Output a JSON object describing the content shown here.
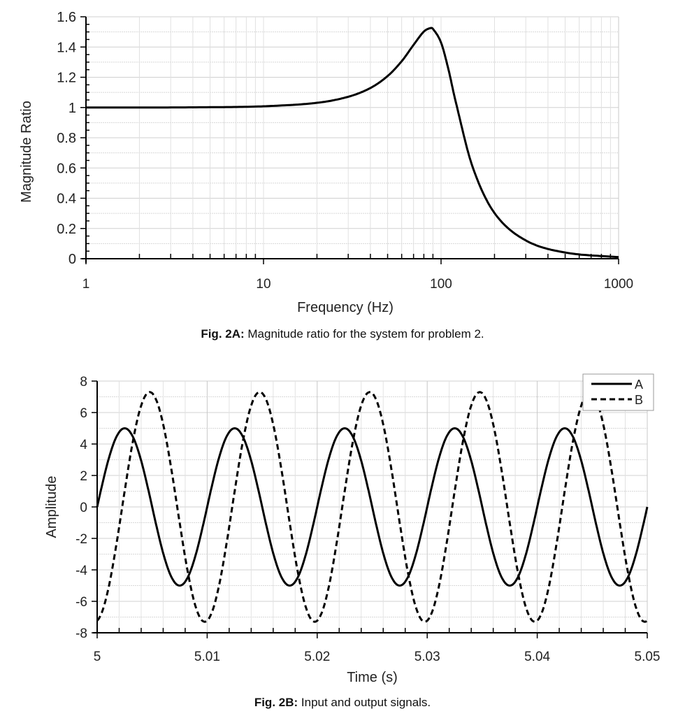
{
  "chart_data": [
    {
      "type": "line",
      "ylabel": "Magnitude Ratio",
      "xlabel": "Frequency (Hz)",
      "x_scale": "log",
      "xlim": [
        1,
        1000
      ],
      "ylim": [
        0,
        1.6
      ],
      "x_ticks": [
        "1",
        "10",
        "100",
        "1000"
      ],
      "y_ticks": [
        "0",
        "0.2",
        "0.4",
        "0.6",
        "0.8",
        "1",
        "1.2",
        "1.4",
        "1.6"
      ],
      "grid": true,
      "line_color": "#000000",
      "caption_label": "Fig. 2A:",
      "caption_text": " Magnitude ratio for the system for problem 2.",
      "x": [
        1,
        2,
        5,
        10,
        20,
        30,
        40,
        50,
        60,
        70,
        80,
        87,
        90,
        100,
        110,
        120,
        150,
        200,
        300,
        500,
        1000
      ],
      "y": [
        1.0,
        1.0,
        1.002,
        1.008,
        1.031,
        1.071,
        1.129,
        1.208,
        1.306,
        1.414,
        1.502,
        1.525,
        1.52,
        1.429,
        1.253,
        1.055,
        0.613,
        0.302,
        0.121,
        0.041,
        0.01
      ]
    },
    {
      "type": "line",
      "ylabel": "Amplitude",
      "xlabel": "Time (s)",
      "xlim": [
        5,
        5.05
      ],
      "ylim": [
        -8,
        8
      ],
      "x_ticks": [
        "5",
        "5.01",
        "5.02",
        "5.03",
        "5.04",
        "5.05"
      ],
      "y_ticks": [
        "-8",
        "-6",
        "-4",
        "-2",
        "0",
        "2",
        "4",
        "6",
        "8"
      ],
      "grid": true,
      "legend_position": "top-right",
      "caption_label": "Fig. 2B:",
      "caption_text": " Input and output signals.",
      "series": [
        {
          "name": "A",
          "style": "solid",
          "color": "#000000",
          "amplitude": 5,
          "frequency_hz": 100,
          "phase_deg": 0
        },
        {
          "name": "B",
          "style": "dashed",
          "color": "#000000",
          "amplitude": 7.3,
          "frequency_hz": 100,
          "phase_deg": -82
        }
      ]
    }
  ]
}
